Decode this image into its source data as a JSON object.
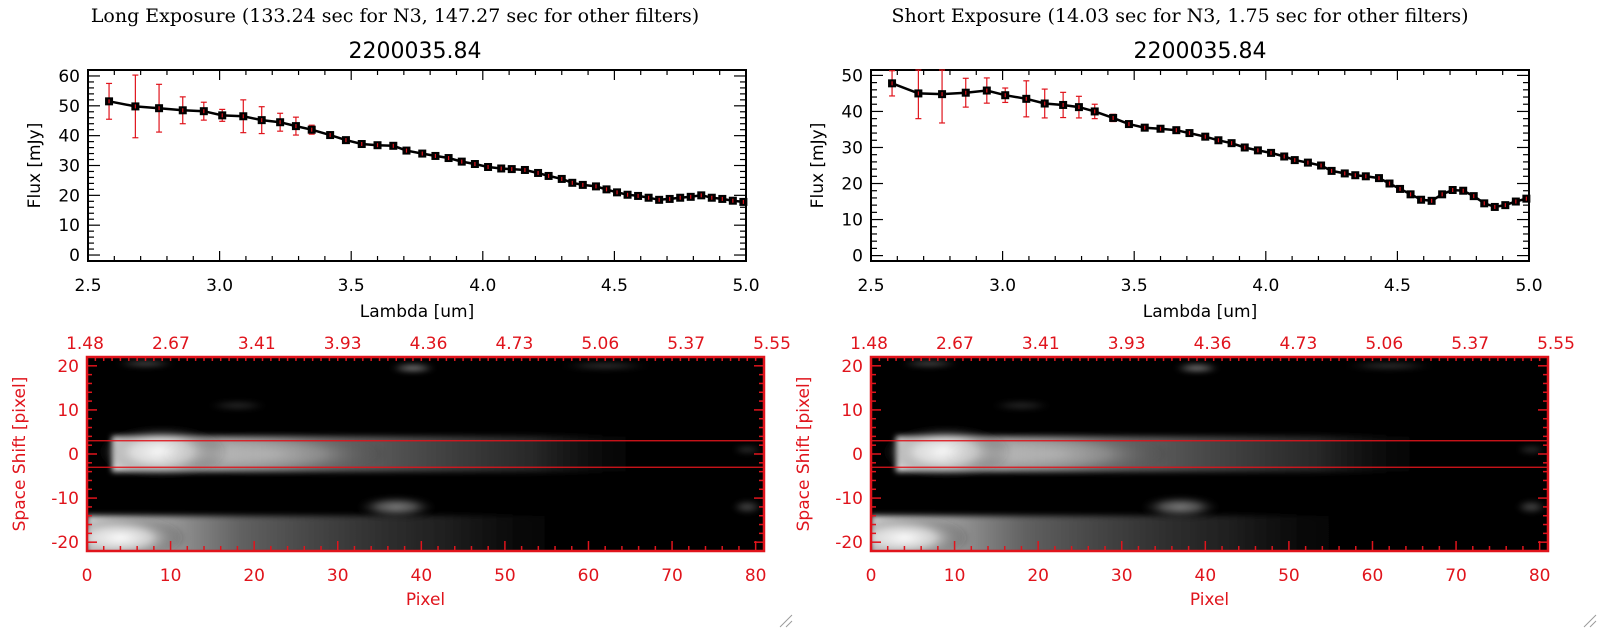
{
  "colors": {
    "axis": "#000000",
    "red": "#e0141c",
    "errorbar": "#e0141c",
    "marker": "#000000"
  },
  "panels": [
    {
      "key": "long",
      "exposure_title": "Long Exposure (133.24 sec for N3, 147.27 sec for other filters)",
      "object_title": "2200035.84",
      "spectrum": {
        "type": "line",
        "xlabel": "Lambda [um]",
        "ylabel": "Flux [mJy]",
        "xlim": [
          2.5,
          5.0
        ],
        "ylim": [
          -2,
          62
        ],
        "xticks": [
          2.5,
          3.0,
          3.5,
          4.0,
          4.5,
          5.0
        ],
        "xtick_labels": [
          "2.5",
          "3.0",
          "3.5",
          "4.0",
          "4.5",
          "5.0"
        ],
        "yticks": [
          0,
          10,
          20,
          30,
          40,
          50,
          60
        ],
        "ytick_labels": [
          "0",
          "10",
          "20",
          "30",
          "40",
          "50",
          "60"
        ],
        "x": [
          2.58,
          2.68,
          2.77,
          2.86,
          2.94,
          3.01,
          3.09,
          3.16,
          3.23,
          3.29,
          3.35,
          3.42,
          3.48,
          3.54,
          3.6,
          3.66,
          3.71,
          3.77,
          3.82,
          3.87,
          3.92,
          3.97,
          4.02,
          4.07,
          4.11,
          4.16,
          4.21,
          4.25,
          4.3,
          4.34,
          4.38,
          4.43,
          4.47,
          4.51,
          4.55,
          4.59,
          4.63,
          4.67,
          4.71,
          4.75,
          4.79,
          4.83,
          4.87,
          4.91,
          4.95,
          4.99
        ],
        "y": [
          51.5,
          49.8,
          49.2,
          48.5,
          48.2,
          46.8,
          46.5,
          45.2,
          44.5,
          43.2,
          42.0,
          40.2,
          38.5,
          37.2,
          36.8,
          36.6,
          35.0,
          34.0,
          33.2,
          32.5,
          31.3,
          30.5,
          29.5,
          29.0,
          28.8,
          28.5,
          27.5,
          26.5,
          25.5,
          24.2,
          23.5,
          23.0,
          22.0,
          21.0,
          20.2,
          19.8,
          19.2,
          18.5,
          18.8,
          19.2,
          19.5,
          20.0,
          19.2,
          18.8,
          18.2,
          17.8
        ],
        "err": [
          6.0,
          10.5,
          8.0,
          4.5,
          3.0,
          2.0,
          5.5,
          4.5,
          3.0,
          3.0,
          1.5,
          0.6,
          0.5,
          0.5,
          0.5,
          0.5,
          0.5,
          0.5,
          0.5,
          0.5,
          0.5,
          0.5,
          0.5,
          0.5,
          0.5,
          0.5,
          0.5,
          0.5,
          0.5,
          0.5,
          0.5,
          0.5,
          0.5,
          0.5,
          0.5,
          0.5,
          0.5,
          0.5,
          0.5,
          0.5,
          0.5,
          0.5,
          0.5,
          0.5,
          0.5,
          0.5
        ]
      },
      "image": {
        "type": "heatmap",
        "xlabel": "Pixel",
        "ylabel": "Space Shift [pixel]",
        "xlim": [
          0,
          81
        ],
        "ylim": [
          -22,
          22
        ],
        "xticks": [
          0,
          10,
          20,
          30,
          40,
          50,
          60,
          70,
          80
        ],
        "xtick_labels": [
          "0",
          "10",
          "20",
          "30",
          "40",
          "50",
          "60",
          "70",
          "80"
        ],
        "yticks": [
          -20,
          -10,
          0,
          10,
          20
        ],
        "ytick_labels": [
          "-20",
          "-10",
          "0",
          "10",
          "20"
        ],
        "top_axis_labels": [
          "1.48",
          "2.67",
          "3.41",
          "3.93",
          "4.36",
          "4.73",
          "5.06",
          "5.37",
          "5.55"
        ],
        "hlines": [
          3,
          -3
        ]
      }
    },
    {
      "key": "short",
      "exposure_title": "Short Exposure (14.03 sec for N3, 1.75 sec for other filters)",
      "object_title": "2200035.84",
      "spectrum": {
        "type": "line",
        "xlabel": "Lambda [um]",
        "ylabel": "Flux [mJy]",
        "xlim": [
          2.5,
          5.0
        ],
        "ylim": [
          -1.5,
          51.5
        ],
        "xticks": [
          2.5,
          3.0,
          3.5,
          4.0,
          4.5,
          5.0
        ],
        "xtick_labels": [
          "2.5",
          "3.0",
          "3.5",
          "4.0",
          "4.5",
          "5.0"
        ],
        "yticks": [
          0,
          10,
          20,
          30,
          40,
          50
        ],
        "ytick_labels": [
          "0",
          "10",
          "20",
          "30",
          "40",
          "50"
        ],
        "x": [
          2.58,
          2.68,
          2.77,
          2.86,
          2.94,
          3.01,
          3.09,
          3.16,
          3.23,
          3.29,
          3.35,
          3.42,
          3.48,
          3.54,
          3.6,
          3.66,
          3.71,
          3.77,
          3.82,
          3.87,
          3.92,
          3.97,
          4.02,
          4.07,
          4.11,
          4.16,
          4.21,
          4.25,
          4.3,
          4.34,
          4.38,
          4.43,
          4.47,
          4.51,
          4.55,
          4.59,
          4.63,
          4.67,
          4.71,
          4.75,
          4.79,
          4.83,
          4.87,
          4.91,
          4.95,
          4.99
        ],
        "y": [
          47.8,
          45.0,
          44.8,
          45.2,
          45.8,
          44.5,
          43.5,
          42.2,
          41.8,
          41.2,
          40.0,
          38.2,
          36.5,
          35.5,
          35.2,
          34.8,
          34.0,
          33.0,
          32.0,
          31.2,
          30.0,
          29.2,
          28.5,
          27.5,
          26.5,
          25.8,
          25.0,
          23.5,
          22.8,
          22.3,
          22.0,
          21.5,
          20.0,
          18.5,
          17.0,
          15.5,
          15.2,
          17.0,
          18.2,
          18.0,
          16.5,
          14.5,
          13.5,
          14.0,
          15.0,
          15.8
        ],
        "err": [
          3.5,
          7.0,
          8.0,
          4.0,
          3.5,
          2.0,
          5.0,
          4.0,
          3.5,
          3.0,
          2.0,
          1.0,
          0.5,
          0.5,
          0.5,
          0.5,
          0.5,
          0.5,
          0.5,
          0.5,
          0.5,
          0.5,
          0.5,
          0.5,
          0.5,
          0.5,
          0.5,
          0.5,
          0.5,
          0.5,
          0.5,
          0.5,
          0.5,
          0.5,
          0.5,
          0.5,
          0.5,
          0.5,
          0.5,
          0.5,
          0.5,
          0.5,
          0.5,
          0.5,
          0.5,
          0.5
        ]
      },
      "image": {
        "type": "heatmap",
        "xlabel": "Pixel",
        "ylabel": "Space Shift [pixel]",
        "xlim": [
          0,
          81
        ],
        "ylim": [
          -22,
          22
        ],
        "xticks": [
          0,
          10,
          20,
          30,
          40,
          50,
          60,
          70,
          80
        ],
        "xtick_labels": [
          "0",
          "10",
          "20",
          "30",
          "40",
          "50",
          "60",
          "70",
          "80"
        ],
        "yticks": [
          -20,
          -10,
          0,
          10,
          20
        ],
        "ytick_labels": [
          "-20",
          "-10",
          "0",
          "10",
          "20"
        ],
        "top_axis_labels": [
          "1.48",
          "2.67",
          "3.41",
          "3.93",
          "4.36",
          "4.73",
          "5.06",
          "5.37",
          "5.55"
        ],
        "hlines": [
          3,
          -3
        ]
      }
    }
  ],
  "chart_data": [
    {
      "type": "line",
      "title": "2200035.84",
      "subtitle": "Long Exposure (133.24 sec for N3, 147.27 sec for other filters)",
      "xlabel": "Lambda [um]",
      "ylabel": "Flux [mJy]",
      "xlim": [
        2.5,
        5.0
      ],
      "ylim": [
        -2,
        62
      ],
      "series": [
        {
          "name": "flux"
        }
      ]
    },
    {
      "type": "heatmap",
      "xlabel": "Pixel",
      "ylabel": "Space Shift [pixel]",
      "xlim": [
        0,
        81
      ],
      "ylim": [
        -22,
        22
      ]
    },
    {
      "type": "line",
      "title": "2200035.84",
      "subtitle": "Short Exposure (14.03 sec for N3, 1.75 sec for other filters)",
      "xlabel": "Lambda [um]",
      "ylabel": "Flux [mJy]",
      "xlim": [
        2.5,
        5.0
      ],
      "ylim": [
        -1.5,
        51.5
      ],
      "series": [
        {
          "name": "flux"
        }
      ]
    },
    {
      "type": "heatmap",
      "xlabel": "Pixel",
      "ylabel": "Space Shift [pixel]",
      "xlim": [
        0,
        81
      ],
      "ylim": [
        -22,
        22
      ]
    }
  ]
}
